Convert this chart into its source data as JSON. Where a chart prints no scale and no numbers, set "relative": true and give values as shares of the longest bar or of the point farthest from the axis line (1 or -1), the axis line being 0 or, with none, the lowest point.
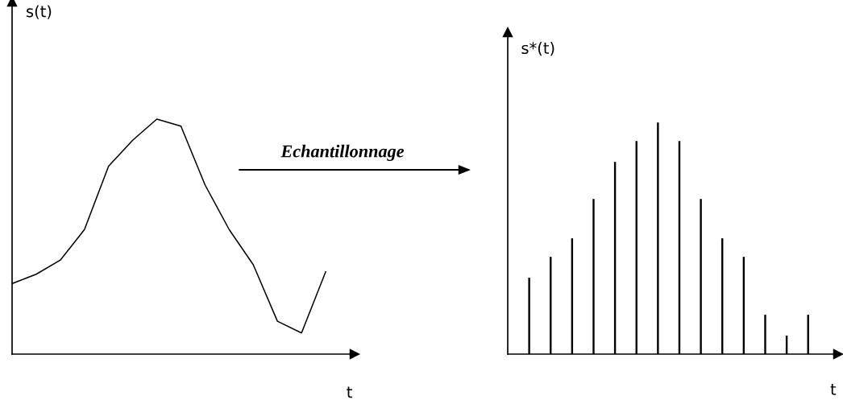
{
  "chart_data": [
    {
      "type": "line",
      "relative": true,
      "ylabel": "s(t)",
      "xlabel": "t",
      "tick_labels": false,
      "legend": false,
      "marker": "none",
      "line_style": "solid",
      "annotations": [
        "Echantillonnage"
      ],
      "categories": [
        null,
        null,
        null,
        null,
        null,
        null,
        null,
        null,
        null,
        null,
        null,
        null,
        null,
        null
      ],
      "series": [
        {
          "color": "#000000",
          "values": [
            0.3,
            0.34,
            0.4,
            0.53,
            0.8,
            0.91,
            1,
            0.97,
            0.72,
            0.53,
            0.38,
            0.14,
            0.09,
            0.35
          ]
        }
      ]
    },
    {
      "type": "bar",
      "relative": true,
      "ylabel": "s*(t)",
      "xlabel": "t",
      "tick_labels": false,
      "legend": false,
      "categories": [
        null,
        null,
        null,
        null,
        null,
        null,
        null,
        null,
        null,
        null,
        null,
        null,
        null,
        null
      ],
      "series": [
        {
          "color": "#000000",
          "values": [
            0.33,
            0.42,
            0.5,
            0.67,
            0.83,
            0.92,
            1,
            0.92,
            0.67,
            0.5,
            0.42,
            0.17,
            0.08,
            0.17
          ]
        }
      ]
    }
  ]
}
